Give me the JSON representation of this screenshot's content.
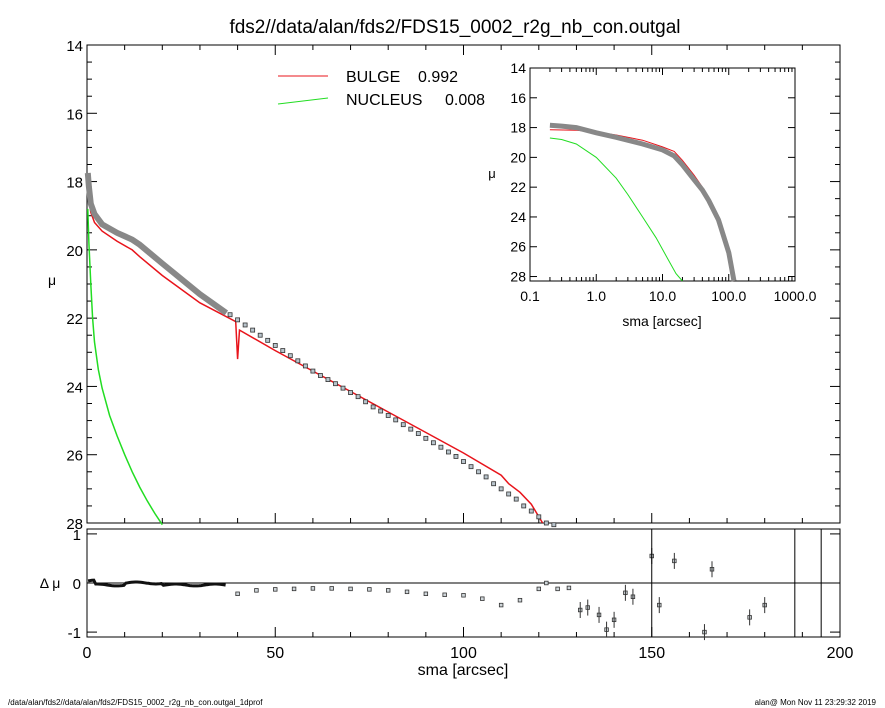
{
  "title": "fds2//data/alan/fds2/FDS15_0002_r2g_nb_con.outgal",
  "footer_left": "/data/alan/fds2//data/alan/fds2/FDS15_0002_r2g_nb_con.outgal_1dprof",
  "footer_right": "alan@  Mon Nov 11 23:29:32 2019",
  "colors": {
    "bulge": "#e8141b",
    "nucleus": "#22dd22",
    "data": "#333333",
    "model": "#888888"
  },
  "chart_data": [
    {
      "type": "line",
      "title": "fds2//data/alan/fds2/FDS15_0002_r2g_nb_con.outgal",
      "xlabel": "",
      "ylabel": "μ",
      "xlim": [
        0,
        200
      ],
      "ylim": [
        28,
        14
      ],
      "y_ticks": [
        "14",
        "16",
        "18",
        "20",
        "22",
        "24",
        "26",
        "28"
      ],
      "legend": {
        "placement": "top-center",
        "entries": [
          {
            "name": "BULGE",
            "value": "0.992",
            "color": "#e8141b"
          },
          {
            "name": "NUCLEUS",
            "value": "0.008",
            "color": "#22dd22"
          }
        ]
      },
      "series": [
        {
          "name": "BULGE",
          "color": "#e8141b",
          "x": [
            0.2,
            1,
            2,
            4,
            8,
            12,
            14,
            20,
            30,
            39.5,
            40,
            40.5,
            50,
            60,
            70,
            80,
            90,
            100,
            110,
            112,
            115,
            118,
            121
          ],
          "y": [
            18.3,
            18.9,
            19.2,
            19.45,
            19.75,
            20.0,
            20.2,
            20.75,
            21.55,
            22.1,
            23.2,
            22.35,
            22.95,
            23.55,
            24.15,
            24.75,
            25.35,
            25.95,
            26.6,
            26.85,
            27.1,
            27.45,
            28.0
          ]
        },
        {
          "name": "NUCLEUS",
          "color": "#22dd22",
          "x": [
            0.2,
            0.5,
            1,
            1.5,
            2,
            3,
            4,
            6,
            8,
            10,
            12,
            14,
            16,
            18,
            20
          ],
          "y": [
            18.8,
            19.8,
            21.0,
            22.0,
            22.7,
            23.5,
            24.05,
            24.85,
            25.45,
            26.0,
            26.5,
            26.95,
            27.35,
            27.72,
            28.05
          ]
        },
        {
          "name": "model",
          "color": "#888888",
          "x": [
            0.2,
            0.5,
            1,
            2,
            4,
            8,
            12,
            14,
            20,
            30,
            37
          ],
          "y": [
            17.75,
            18.15,
            18.65,
            18.95,
            19.25,
            19.5,
            19.7,
            19.85,
            20.4,
            21.3,
            21.85
          ]
        },
        {
          "name": "data",
          "color": "#333333",
          "x": [
            38,
            40,
            42,
            44,
            46,
            48,
            50,
            52,
            54,
            56,
            58,
            60,
            62,
            64,
            66,
            68,
            70,
            72,
            74,
            76,
            78,
            80,
            82,
            84,
            86,
            88,
            90,
            92,
            94,
            96,
            98,
            100,
            102,
            104,
            106,
            108,
            110,
            112,
            114,
            116,
            118,
            120,
            122,
            124
          ],
          "y": [
            21.9,
            22.05,
            22.2,
            22.35,
            22.5,
            22.65,
            22.8,
            22.95,
            23.1,
            23.25,
            23.4,
            23.55,
            23.68,
            23.8,
            23.92,
            24.05,
            24.18,
            24.3,
            24.45,
            24.6,
            24.72,
            24.85,
            24.98,
            25.12,
            25.25,
            25.38,
            25.52,
            25.65,
            25.78,
            25.92,
            26.05,
            26.2,
            26.35,
            26.5,
            26.65,
            26.85,
            27.0,
            27.15,
            27.3,
            27.5,
            27.65,
            27.82,
            28.0,
            28.05
          ]
        }
      ]
    },
    {
      "type": "line",
      "xlabel": "sma [arcsec]",
      "ylabel": "μ",
      "xscale": "log",
      "xlim": [
        0.1,
        1000
      ],
      "ylim": [
        28.3,
        14
      ],
      "x_ticks": [
        "0.1",
        "1.0",
        "10.0",
        "100.0",
        "1000.0"
      ],
      "y_ticks": [
        "14",
        "16",
        "18",
        "20",
        "22",
        "24",
        "26",
        "28"
      ],
      "series": [
        {
          "name": "BULGE",
          "color": "#e8141b",
          "x": [
            0.2,
            0.5,
            1,
            2,
            5,
            10,
            15,
            20,
            30,
            40,
            50,
            70,
            100,
            120
          ],
          "y": [
            18.15,
            18.18,
            18.3,
            18.5,
            18.85,
            19.3,
            19.6,
            20.2,
            21.2,
            22.0,
            22.7,
            24.0,
            26.2,
            28.3
          ]
        },
        {
          "name": "NUCLEUS",
          "color": "#22dd22",
          "x": [
            0.2,
            0.3,
            0.5,
            1,
            2,
            3,
            5,
            8,
            12,
            16,
            20
          ],
          "y": [
            18.7,
            18.8,
            19.1,
            20.0,
            21.4,
            22.5,
            24.0,
            25.4,
            26.8,
            27.8,
            28.3
          ]
        },
        {
          "name": "model",
          "color": "#888888",
          "x": [
            0.2,
            0.3,
            0.5,
            1,
            2,
            5,
            10,
            15,
            20,
            30,
            40,
            50,
            70,
            100,
            120
          ],
          "y": [
            17.85,
            17.9,
            18.0,
            18.35,
            18.65,
            19.1,
            19.5,
            19.9,
            20.5,
            21.5,
            22.2,
            22.9,
            24.2,
            26.4,
            28.3
          ]
        }
      ]
    },
    {
      "type": "scatter",
      "xlabel": "sma [arcsec]",
      "ylabel": "Δ μ",
      "xlim": [
        0,
        200
      ],
      "ylim": [
        -1.1,
        1.1
      ],
      "x_ticks": [
        "0",
        "50",
        "100",
        "150",
        "200"
      ],
      "y_ticks": [
        "1",
        "0",
        "-1"
      ],
      "series": [
        {
          "name": "residual",
          "x": [
            40,
            45,
            50,
            55,
            60,
            65,
            70,
            75,
            80,
            85,
            90,
            95,
            100,
            105,
            110,
            115,
            120,
            122,
            125,
            128,
            131,
            133,
            136,
            138,
            140,
            143,
            145,
            150,
            152,
            156,
            164,
            166,
            176,
            180
          ],
          "y": [
            -0.22,
            -0.15,
            -0.13,
            -0.12,
            -0.11,
            -0.11,
            -0.12,
            -0.13,
            -0.15,
            -0.18,
            -0.22,
            -0.24,
            -0.25,
            -0.32,
            -0.45,
            -0.35,
            -0.12,
            0.0,
            -0.12,
            -0.1,
            -0.55,
            -0.5,
            -0.65,
            -0.95,
            -0.75,
            -0.2,
            -0.28,
            0.55,
            -0.45,
            0.45,
            -1.0,
            0.28,
            -0.7,
            -0.45
          ]
        }
      ]
    }
  ]
}
